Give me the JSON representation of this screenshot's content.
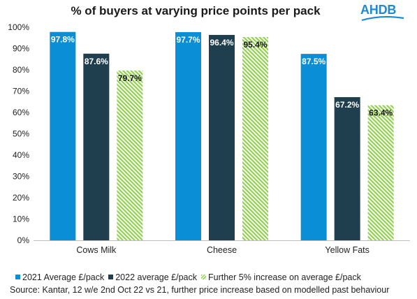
{
  "chart_data": {
    "type": "bar",
    "title": "% of buyers at varying price points per pack",
    "categories": [
      "Cows Milk",
      "Cheese",
      "Yellow Fats"
    ],
    "series": [
      {
        "name": "2021 Average £/pack",
        "values": [
          97.8,
          97.7,
          87.5
        ],
        "labels": [
          "97.8%",
          "97.7%",
          "87.5%"
        ],
        "color": "#0a8fd6",
        "pattern": "solid"
      },
      {
        "name": "2022 average £/pack",
        "values": [
          87.6,
          96.4,
          67.2
        ],
        "labels": [
          "87.6%",
          "96.4%",
          "67.2%"
        ],
        "color": "#1f3f4f",
        "pattern": "solid"
      },
      {
        "name": "Further 5% increase on average £/pack",
        "values": [
          79.7,
          95.4,
          63.4
        ],
        "labels": [
          "79.7%",
          "95.4%",
          "63.4%"
        ],
        "color": "#92d050",
        "pattern": "diagonal-hatch"
      }
    ],
    "ylim": [
      0,
      100
    ],
    "yticks": [
      "0%",
      "10%",
      "20%",
      "30%",
      "40%",
      "50%",
      "60%",
      "70%",
      "80%",
      "90%",
      "100%"
    ],
    "xlabel": "",
    "ylabel": "",
    "grid": false,
    "legend_position": "bottom"
  },
  "logo": {
    "text": "AHDB",
    "color": "#1e88d0"
  },
  "source": "Source: Kantar, 12 w/e 2nd Oct 22 vs 21, further price increase based on modelled past behaviour"
}
